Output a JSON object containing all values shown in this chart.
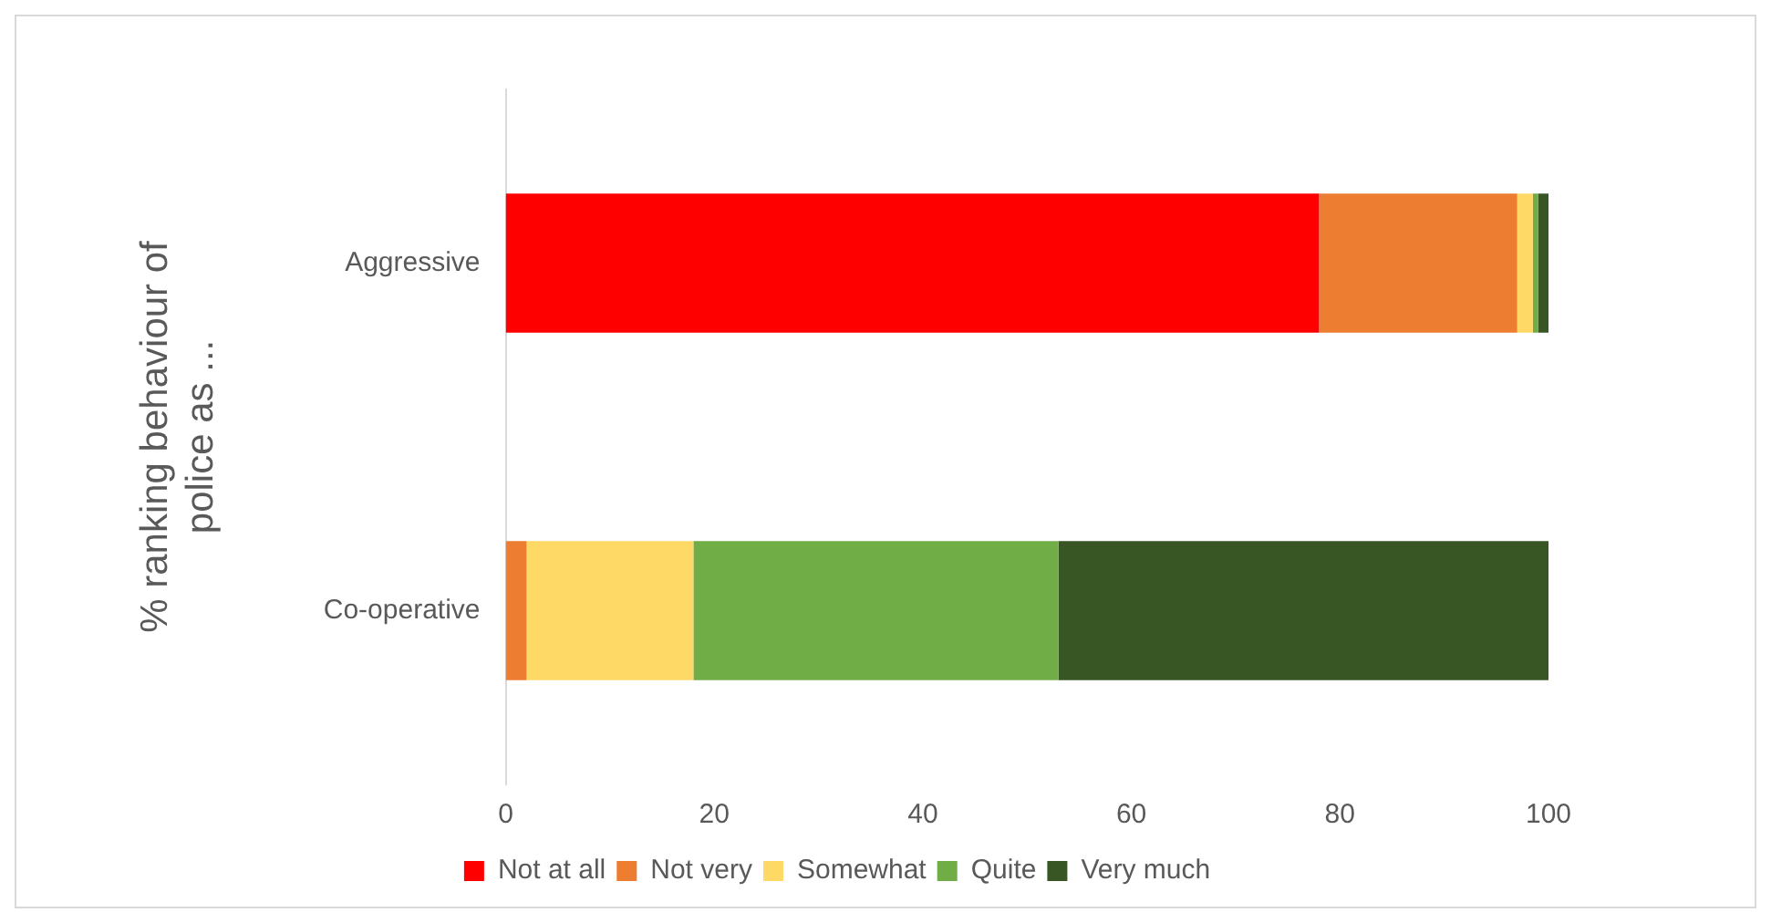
{
  "chart_data": {
    "type": "bar",
    "orientation": "horizontal",
    "stacked": true,
    "ylabel": "% ranking behaviour of police as ...",
    "categories": [
      "Aggressive",
      "Co-operative"
    ],
    "series": [
      {
        "name": "Not at all",
        "color": "#ff0000",
        "values": [
          78,
          0
        ]
      },
      {
        "name": "Not very",
        "color": "#ed7d31",
        "values": [
          19,
          2
        ]
      },
      {
        "name": "Somewhat",
        "color": "#ffd966",
        "values": [
          1.5,
          16
        ]
      },
      {
        "name": "Quite",
        "color": "#70ad47",
        "values": [
          0.5,
          35
        ]
      },
      {
        "name": "Very much",
        "color": "#375623",
        "values": [
          1,
          47
        ]
      }
    ],
    "xlim": [
      0,
      100
    ],
    "xticks": [
      0,
      20,
      40,
      60,
      80,
      100
    ],
    "grid": false,
    "legend": "bottom"
  }
}
